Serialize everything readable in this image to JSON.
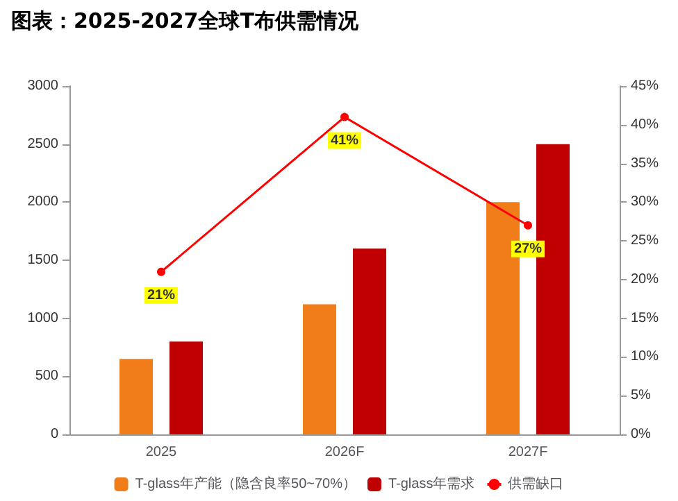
{
  "chart_data": {
    "type": "bar",
    "title": "图表：2025-2027全球T布供需情况",
    "categories": [
      "2025",
      "2026F",
      "2027F"
    ],
    "series": [
      {
        "name": "T-glass年产能（隐含良率50~70%）",
        "color": "#f07d1a",
        "values": [
          650,
          1120,
          2000
        ]
      },
      {
        "name": "T-glass年需求",
        "color": "#c00000",
        "values": [
          800,
          1600,
          2500
        ]
      },
      {
        "name": "供需缺口",
        "type": "line",
        "axis": "y2",
        "color": "#ff0000",
        "values": [
          21,
          41,
          27
        ],
        "value_labels": [
          "21%",
          "41%",
          "27%"
        ]
      }
    ],
    "ylim": [
      0,
      3000
    ],
    "yticks": [
      0,
      500,
      1000,
      1500,
      2000,
      2500,
      3000
    ],
    "y2lim": [
      0,
      45
    ],
    "y2ticks": [
      {
        "value": 0,
        "label": "0%"
      },
      {
        "value": 5,
        "label": "5%"
      },
      {
        "value": 10,
        "label": "10%"
      },
      {
        "value": 15,
        "label": "15%"
      },
      {
        "value": 20,
        "label": "20%"
      },
      {
        "value": 25,
        "label": "25%"
      },
      {
        "value": 30,
        "label": "30%"
      },
      {
        "value": 35,
        "label": "35%"
      },
      {
        "value": 40,
        "label": "40%"
      },
      {
        "value": 45,
        "label": "45%"
      }
    ],
    "grid": false,
    "legend": "bottom",
    "marker": "circle",
    "line_style": "solid"
  }
}
